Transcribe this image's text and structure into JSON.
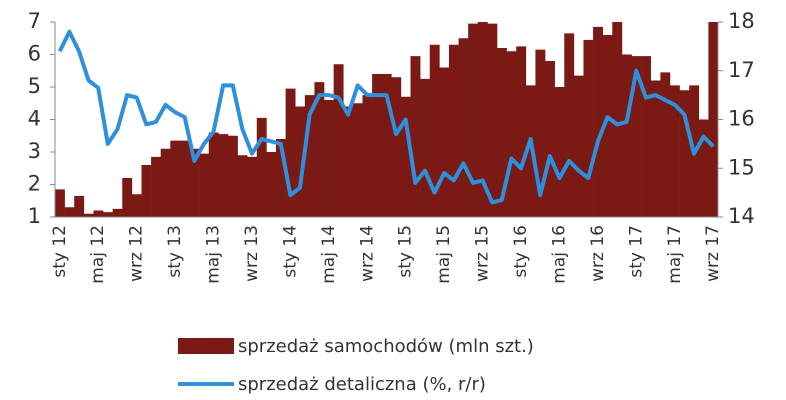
{
  "chart_data": {
    "type": "bar_line",
    "categories": [
      "sty 12",
      null,
      null,
      null,
      "maj 12",
      null,
      null,
      null,
      "wrz 12",
      null,
      null,
      null,
      "sty 13",
      null,
      null,
      null,
      "maj 13",
      null,
      null,
      null,
      "wrz 13",
      null,
      null,
      null,
      "sty 14",
      null,
      null,
      null,
      "maj 14",
      null,
      null,
      null,
      "wrz 14",
      null,
      null,
      null,
      "sty 15",
      null,
      null,
      null,
      "maj 15",
      null,
      null,
      null,
      "wrz 15",
      null,
      null,
      null,
      "sty 16",
      null,
      null,
      null,
      "maj 16",
      null,
      null,
      null,
      "wrz 16",
      null,
      null,
      null,
      "sty 17",
      null,
      null,
      null,
      "maj 17",
      null,
      null,
      null,
      "wrz 17"
    ],
    "series": [
      {
        "name": "sprzedaż samochodów (mln szt.)",
        "type": "bar",
        "color": "#7b1a15",
        "values": [
          1.85,
          1.3,
          1.65,
          1.1,
          1.2,
          1.15,
          1.25,
          2.2,
          1.7,
          2.6,
          2.85,
          3.1,
          3.35,
          3.35,
          3.1,
          2.95,
          3.6,
          3.55,
          3.5,
          2.9,
          2.85,
          4.05,
          3.0,
          3.4,
          4.95,
          4.4,
          4.75,
          5.15,
          4.6,
          5.7,
          4.4,
          4.5,
          4.75,
          5.4,
          5.4,
          5.3,
          4.7,
          5.95,
          5.25,
          6.3,
          5.6,
          6.3,
          6.5,
          6.95,
          7.0,
          6.95,
          6.2,
          6.1,
          6.25,
          5.05,
          6.15,
          5.8,
          5.0,
          6.65,
          5.35,
          6.45,
          6.85,
          6.6,
          7.0,
          6.0,
          5.95,
          5.95,
          5.2,
          5.45,
          5.05,
          4.9,
          5.05,
          4.0,
          7.0
        ]
      },
      {
        "name": "sprzedaż detaliczna (%, r/r)",
        "type": "line",
        "axis": "y2",
        "color": "#2e8fdc",
        "values": [
          17.4,
          17.8,
          17.4,
          16.8,
          16.65,
          15.5,
          15.8,
          16.5,
          16.45,
          15.9,
          15.95,
          16.3,
          16.15,
          16.05,
          15.15,
          15.5,
          15.75,
          16.7,
          16.7,
          15.8,
          15.3,
          15.6,
          15.55,
          15.5,
          14.45,
          14.6,
          16.1,
          16.5,
          16.5,
          16.45,
          16.1,
          16.7,
          16.5,
          16.5,
          16.5,
          15.7,
          16.0,
          14.7,
          14.95,
          14.5,
          14.9,
          14.75,
          15.1,
          14.7,
          14.75,
          14.3,
          14.35,
          15.2,
          15.0,
          15.6,
          14.45,
          15.25,
          14.8,
          15.15,
          14.95,
          14.8,
          15.55,
          16.05,
          15.9,
          15.95,
          17.0,
          16.45,
          16.5,
          16.4,
          16.3,
          16.1,
          15.3,
          15.65,
          15.45
        ]
      }
    ],
    "ylim": [
      1,
      7
    ],
    "yticks": [
      1,
      2,
      3,
      4,
      5,
      6,
      7
    ],
    "y2lim": [
      14,
      18
    ],
    "y2ticks": [
      14,
      15,
      16,
      17,
      18
    ]
  }
}
